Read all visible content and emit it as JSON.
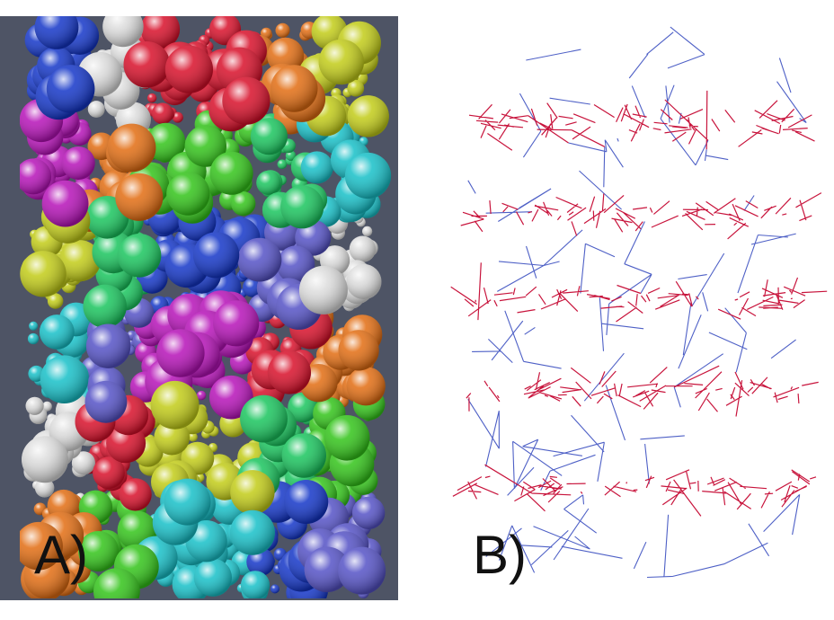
{
  "figure": {
    "panels": [
      {
        "label": "A)",
        "kind": "sphere-packing",
        "background": "#4e5465",
        "cluster_colors": [
          "#1436c8",
          "#dcdcdc",
          "#d8102a",
          "#e26d12",
          "#c2cc18",
          "#b612b8",
          "#33c41a",
          "#1ac55e",
          "#17c0c8",
          "#5552c6"
        ]
      },
      {
        "label": "B)",
        "kind": "contact-network",
        "background": "#ffffff",
        "edge_colors": {
          "main": "#3b4fc0",
          "interface": "#c8143c"
        }
      }
    ]
  }
}
